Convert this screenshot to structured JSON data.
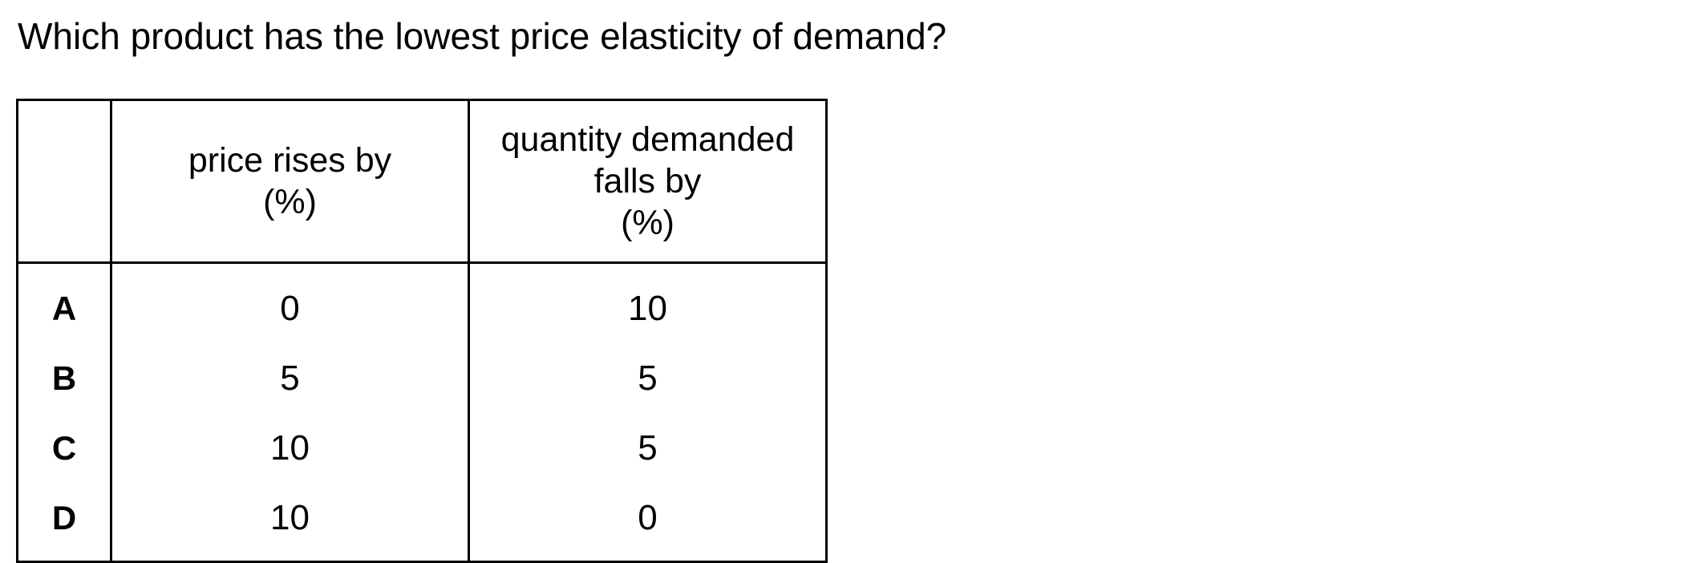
{
  "question": {
    "text": "Which product has the lowest price elasticity of demand?"
  },
  "table": {
    "headers": {
      "product": "",
      "price_line1": "price rises by",
      "price_line2": "(%)",
      "quantity_line1": "quantity demanded",
      "quantity_line2": "falls by",
      "quantity_line3": "(%)"
    },
    "rows": [
      {
        "label": "A",
        "price_rise": "0",
        "quantity_fall": "10"
      },
      {
        "label": "B",
        "price_rise": "5",
        "quantity_fall": "5"
      },
      {
        "label": "C",
        "price_rise": "10",
        "quantity_fall": "5"
      },
      {
        "label": "D",
        "price_rise": "10",
        "quantity_fall": "0"
      }
    ]
  }
}
